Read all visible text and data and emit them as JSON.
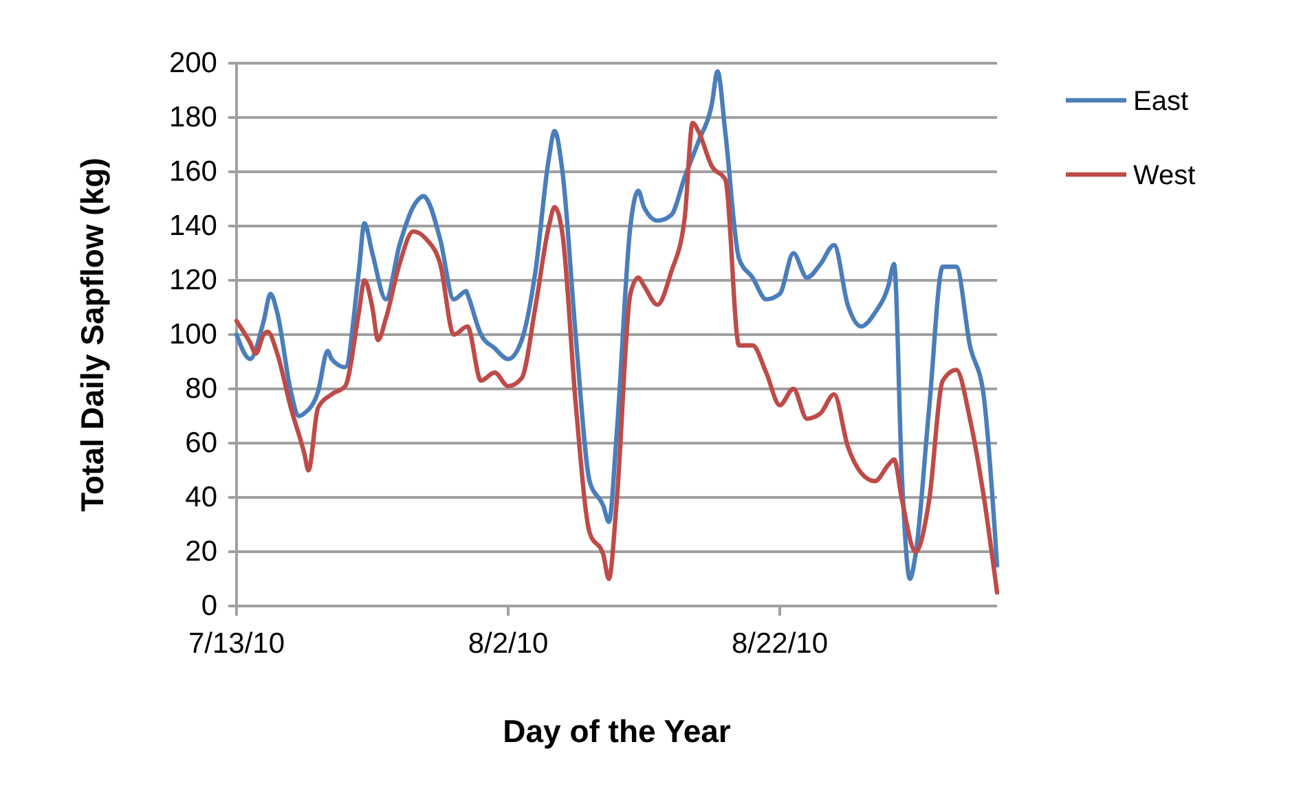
{
  "chart_data": {
    "type": "line",
    "xlabel": "Day of the Year",
    "ylabel": "Total Daily Sapflow (kg)",
    "xlim": [
      "2010-07-13",
      "2010-09-07"
    ],
    "xticks": [
      {
        "value": "2010-07-13",
        "label": "7/13/10"
      },
      {
        "value": "2010-08-02",
        "label": "8/2/10"
      },
      {
        "value": "2010-08-22",
        "label": "8/22/10"
      }
    ],
    "ylim": [
      0,
      200
    ],
    "yticks": [
      0,
      20,
      40,
      60,
      80,
      100,
      120,
      140,
      160,
      180,
      200
    ],
    "grid": "y",
    "legend": "right",
    "marker": "none",
    "line_style": "solid",
    "series": [
      {
        "name": "East",
        "color": "#4a7ebb",
        "x": [
          "2010-07-13",
          "2010-07-14",
          "2010-07-15",
          "2010-07-15T12:00",
          "2010-07-16",
          "2010-07-17",
          "2010-07-17T14:00",
          "2010-07-18",
          "2010-07-19",
          "2010-07-19T17:00",
          "2010-07-20",
          "2010-07-21",
          "2010-07-22",
          "2010-07-22T10:00",
          "2010-07-23",
          "2010-07-24",
          "2010-07-25",
          "2010-07-26",
          "2010-07-26T19:00",
          "2010-07-27",
          "2010-07-28",
          "2010-07-29",
          "2010-07-29T22:00",
          "2010-07-30",
          "2010-07-31",
          "2010-08-01",
          "2010-08-02",
          "2010-08-03",
          "2010-08-04",
          "2010-08-05",
          "2010-08-05T10:00",
          "2010-08-06",
          "2010-08-07",
          "2010-08-08",
          "2010-08-09",
          "2010-08-09T10:00",
          "2010-08-10",
          "2010-08-11",
          "2010-08-11T14:00",
          "2010-08-12",
          "2010-08-13",
          "2010-08-14",
          "2010-08-15",
          "2010-08-16",
          "2010-08-17",
          "2010-08-17T10:00",
          "2010-08-18",
          "2010-08-19",
          "2010-08-20",
          "2010-08-21",
          "2010-08-22",
          "2010-08-23",
          "2010-08-24",
          "2010-08-25",
          "2010-08-26",
          "2010-08-27",
          "2010-08-28",
          "2010-08-29",
          "2010-08-30",
          "2010-08-30T10:00",
          "2010-08-31",
          "2010-08-31T14:00",
          "2010-09-01",
          "2010-09-02",
          "2010-09-03",
          "2010-09-04",
          "2010-09-05",
          "2010-09-06",
          "2010-09-07"
        ],
        "values": [
          100,
          91,
          105,
          115,
          108,
          79,
          70,
          71,
          79,
          94,
          91,
          88,
          123,
          141,
          130,
          113,
          133,
          147,
          151,
          150,
          135,
          113,
          116,
          115,
          100,
          95,
          91,
          98,
          123,
          165,
          175,
          160,
          98,
          46,
          37,
          31,
          64,
          140,
          153,
          147,
          142,
          144,
          158,
          171,
          185,
          197,
          174,
          128,
          121,
          113,
          115,
          130,
          121,
          126,
          133,
          111,
          103,
          108,
          118,
          126,
          47,
          10,
          19,
          73,
          125,
          125,
          96,
          78,
          15
        ]
      },
      {
        "name": "West",
        "color": "#be4b48",
        "x": [
          "2010-07-13",
          "2010-07-14",
          "2010-07-14T10:00",
          "2010-07-15",
          "2010-07-15T07:00",
          "2010-07-16",
          "2010-07-17",
          "2010-07-18",
          "2010-07-18T07:00",
          "2010-07-19",
          "2010-07-20",
          "2010-07-21",
          "2010-07-22",
          "2010-07-22T10:00",
          "2010-07-23",
          "2010-07-23T10:00",
          "2010-07-24",
          "2010-07-25",
          "2010-07-26",
          "2010-07-27",
          "2010-07-28",
          "2010-07-29",
          "2010-07-30",
          "2010-07-31",
          "2010-08-01",
          "2010-08-02",
          "2010-08-03",
          "2010-08-04",
          "2010-08-05",
          "2010-08-05T10:00",
          "2010-08-06",
          "2010-08-07",
          "2010-08-08",
          "2010-08-09",
          "2010-08-09T10:00",
          "2010-08-10",
          "2010-08-11",
          "2010-08-11T14:00",
          "2010-08-12",
          "2010-08-13",
          "2010-08-14",
          "2010-08-15",
          "2010-08-15T14:00",
          "2010-08-16",
          "2010-08-17",
          "2010-08-18",
          "2010-08-19",
          "2010-08-20",
          "2010-08-21",
          "2010-08-22",
          "2010-08-23",
          "2010-08-24",
          "2010-08-25",
          "2010-08-26",
          "2010-08-27",
          "2010-08-28",
          "2010-08-29",
          "2010-08-30",
          "2010-08-30T10:00",
          "2010-08-31",
          "2010-09-01",
          "2010-09-02",
          "2010-09-03",
          "2010-09-04",
          "2010-09-05",
          "2010-09-06",
          "2010-09-07"
        ],
        "values": [
          105,
          97,
          93,
          100,
          101,
          93,
          73,
          56,
          50,
          73,
          78,
          81,
          108,
          120,
          110,
          98,
          106,
          126,
          138,
          135,
          126,
          100,
          103,
          83,
          86,
          81,
          84,
          110,
          140,
          147,
          137,
          73,
          27,
          19,
          10,
          39,
          115,
          121,
          118,
          111,
          123,
          143,
          178,
          175,
          162,
          157,
          96,
          96,
          86,
          74,
          80,
          69,
          71,
          78,
          59,
          49,
          46,
          52,
          54,
          39,
          20,
          39,
          83,
          87,
          69,
          41,
          5
        ]
      }
    ]
  }
}
